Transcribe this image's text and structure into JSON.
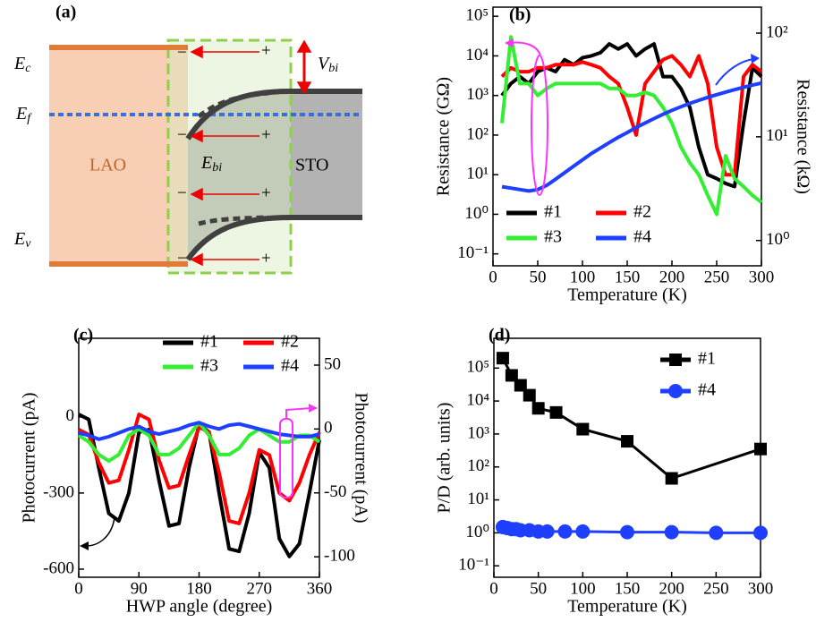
{
  "band_diagram": {
    "panel": "(a)",
    "ec": {
      "symbol": "E",
      "sub": "c"
    },
    "ef": {
      "symbol": "E",
      "sub": "f"
    },
    "ev": {
      "symbol": "E",
      "sub": "v"
    },
    "ebi": {
      "symbol": "E",
      "sub": "bi"
    },
    "vbi": {
      "symbol": "V",
      "sub": "bi"
    },
    "left_material": "LAO",
    "right_material": "STO",
    "negative": "−",
    "positive": "+"
  },
  "chart_data": [
    {
      "type": "line",
      "panel": "(b)",
      "xlabel": "Temperature (K)",
      "ylabel": "Resistance (GΩ)",
      "y2label": "Resistance (kΩ)",
      "log": true,
      "y2log": true,
      "x": [
        10,
        20,
        30,
        40,
        50,
        60,
        70,
        80,
        90,
        100,
        110,
        120,
        130,
        140,
        150,
        160,
        170,
        180,
        190,
        200,
        210,
        220,
        230,
        240,
        250,
        260,
        270,
        280,
        290,
        300
      ],
      "xlim": [
        0,
        300
      ],
      "xticks": [
        0,
        50,
        100,
        150,
        200,
        250,
        300
      ],
      "ylim": [
        0.05,
        170000
      ],
      "yticks": [
        {
          "value": 0.1,
          "label": "10⁻¹"
        },
        {
          "value": 1,
          "label": "10⁰"
        },
        {
          "value": 10,
          "label": "10¹"
        },
        {
          "value": 100,
          "label": "10²"
        },
        {
          "value": 1000,
          "label": "10³"
        },
        {
          "value": 10000,
          "label": "10⁴"
        },
        {
          "value": 100000,
          "label": "10⁵"
        }
      ],
      "y2lim": [
        0.57,
        178
      ],
      "y2ticks": [
        {
          "value": 1,
          "label": "10⁰"
        },
        {
          "value": 10,
          "label": "10¹"
        },
        {
          "value": 100,
          "label": "10²"
        }
      ],
      "series": [
        {
          "name": "#1",
          "color": "#000000",
          "values": [
            1000,
            2000,
            3000,
            2000,
            4000,
            5000,
            4000,
            8000,
            6000,
            9000,
            10000,
            12000,
            20000,
            15000,
            20000,
            10000,
            15000,
            20000,
            3000,
            3000,
            1500,
            500,
            50,
            10,
            8,
            6,
            5,
            200,
            5000,
            3000
          ]
        },
        {
          "name": "#2",
          "color": "#ff0000",
          "values": [
            3000,
            5000,
            4000,
            4000,
            5000,
            5000,
            6000,
            6000,
            6000,
            7000,
            6000,
            5000,
            3000,
            2000,
            500,
            100,
            2000,
            4000,
            8000,
            10000,
            6000,
            3000,
            10000,
            2000,
            50,
            10,
            10,
            3000,
            6000,
            4000
          ]
        },
        {
          "name": "#3",
          "color": "#33ee33",
          "values": [
            200,
            30000,
            2000,
            2000,
            1000,
            1500,
            2000,
            2000,
            2000,
            2000,
            2000,
            2000,
            1500,
            1500,
            1000,
            1000,
            1200,
            1000,
            500,
            200,
            50,
            20,
            10,
            3,
            1,
            30,
            8,
            5,
            3,
            2
          ]
        },
        {
          "name": "#4",
          "color": "#1f3fff",
          "axis": "y2",
          "values": [
            3.3,
            3.2,
            3.1,
            3.0,
            3.1,
            3.4,
            3.9,
            4.5,
            5.2,
            6,
            6.9,
            7.8,
            8.8,
            9.9,
            11,
            12.3,
            13.6,
            15,
            16.5,
            18,
            19.5,
            21,
            22.5,
            24,
            25.5,
            27,
            28.5,
            30,
            31.5,
            33
          ]
        }
      ]
    },
    {
      "type": "line",
      "panel": "(c)",
      "xlabel": "HWP angle (degree)",
      "ylabel": "Photocurrent (pA)",
      "y2label": "Photocurrent (pA)",
      "x": [
        0,
        15,
        30,
        45,
        60,
        75,
        90,
        105,
        120,
        135,
        150,
        165,
        180,
        195,
        210,
        225,
        240,
        255,
        270,
        285,
        300,
        315,
        330,
        345,
        360
      ],
      "xlim": [
        0,
        360
      ],
      "xticks": [
        0,
        90,
        180,
        270,
        360
      ],
      "ylim": [
        -632,
        310
      ],
      "yticks": [
        -600,
        -300,
        0
      ],
      "y2lim": [
        -116,
        71
      ],
      "y2ticks": [
        -100,
        -50,
        0,
        50
      ],
      "series": [
        {
          "name": "#1",
          "color": "#000000",
          "values": [
            10,
            -10,
            -200,
            -380,
            -410,
            -300,
            -60,
            -50,
            -250,
            -430,
            -420,
            -200,
            -30,
            -60,
            -300,
            -520,
            -530,
            -380,
            -140,
            -200,
            -480,
            -550,
            -500,
            -300,
            -90
          ]
        },
        {
          "name": "#2",
          "color": "#ff0000",
          "values": [
            -50,
            -70,
            -180,
            -260,
            -250,
            -130,
            10,
            -10,
            -170,
            -280,
            -270,
            -150,
            -40,
            -60,
            -220,
            -410,
            -420,
            -300,
            -130,
            -150,
            -300,
            -330,
            -260,
            -150,
            -60
          ]
        },
        {
          "name": "#3",
          "color": "#33ee33",
          "axis": "y2",
          "values": [
            -5,
            -10,
            -20,
            -25,
            -20,
            -5,
            0,
            -5,
            -20,
            -20,
            -15,
            -5,
            5,
            -5,
            -20,
            -20,
            -15,
            -5,
            0,
            -5,
            -10,
            -10,
            -5,
            -5,
            -10
          ]
        },
        {
          "name": "#4",
          "color": "#1f3fff",
          "axis": "y2",
          "values": [
            -3,
            -5,
            -8,
            -6,
            -3,
            0,
            2,
            -2,
            -4,
            -2,
            0,
            3,
            5,
            2,
            0,
            3,
            4,
            2,
            0,
            -2,
            -4,
            -5,
            -6,
            -6,
            -4
          ]
        }
      ]
    },
    {
      "type": "line",
      "panel": "(d)",
      "xlabel": "Temperature (K)",
      "ylabel": "P/D (arb. units)",
      "log": true,
      "markers": true,
      "xlim": [
        0,
        300
      ],
      "xticks": [
        0,
        50,
        100,
        150,
        200,
        250,
        300
      ],
      "ylim": [
        0.045,
        800000
      ],
      "yticks": [
        {
          "value": 0.1,
          "label": "10⁻¹"
        },
        {
          "value": 1,
          "label": "10⁰"
        },
        {
          "value": 10,
          "label": "10¹"
        },
        {
          "value": 100,
          "label": "10²"
        },
        {
          "value": 1000,
          "label": "10³"
        },
        {
          "value": 10000,
          "label": "10⁴"
        },
        {
          "value": 100000,
          "label": "10⁵"
        }
      ],
      "series": [
        {
          "name": "#1",
          "color": "#000000",
          "marker": "square",
          "x": [
            10,
            20,
            30,
            40,
            50,
            70,
            100,
            150,
            200,
            300
          ],
          "values": [
            200000,
            60000,
            30000,
            15000,
            6000,
            4500,
            1400,
            600,
            45,
            350
          ]
        },
        {
          "name": "#4",
          "color": "#1f3fff",
          "marker": "circle",
          "x": [
            10,
            15,
            20,
            25,
            30,
            40,
            50,
            60,
            80,
            100,
            150,
            200,
            250,
            300
          ],
          "values": [
            1.5,
            1.4,
            1.3,
            1.3,
            1.2,
            1.2,
            1.1,
            1.1,
            1.1,
            1.1,
            1.05,
            1.05,
            1.0,
            1.0
          ]
        }
      ]
    }
  ]
}
